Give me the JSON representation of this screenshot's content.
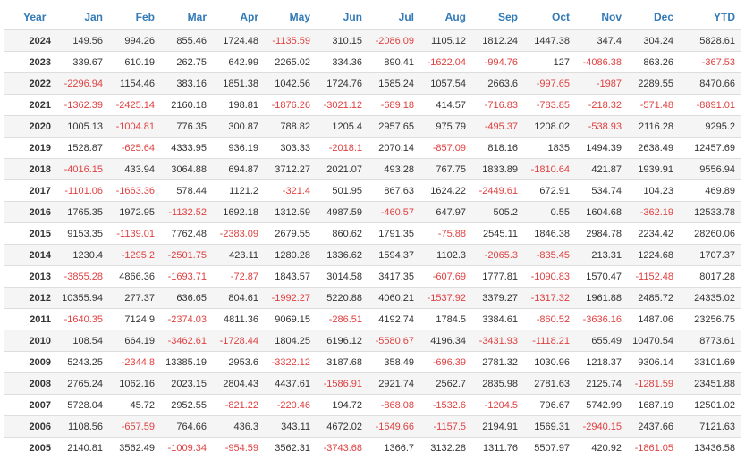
{
  "table": {
    "columns": [
      "Year",
      "Jan",
      "Feb",
      "Mar",
      "Apr",
      "May",
      "Jun",
      "Jul",
      "Aug",
      "Sep",
      "Oct",
      "Nov",
      "Dec",
      "YTD"
    ],
    "colors": {
      "header": "#337ab7",
      "negative": "#e04040",
      "text": "#333333",
      "stripe": "#f5f5f5"
    },
    "rows": [
      [
        "2024",
        "149.56",
        "994.26",
        "855.46",
        "1724.48",
        "-1135.59",
        "310.15",
        "-2086.09",
        "1105.12",
        "1812.24",
        "1447.38",
        "347.4",
        "304.24",
        "5828.61"
      ],
      [
        "2023",
        "339.67",
        "610.19",
        "262.75",
        "642.99",
        "2265.02",
        "334.36",
        "890.41",
        "-1622.04",
        "-994.76",
        "127",
        "-4086.38",
        "863.26",
        "-367.53"
      ],
      [
        "2022",
        "-2296.94",
        "1154.46",
        "383.16",
        "1851.38",
        "1042.56",
        "1724.76",
        "1585.24",
        "1057.54",
        "2663.6",
        "-997.65",
        "-1987",
        "2289.55",
        "8470.66"
      ],
      [
        "2021",
        "-1362.39",
        "-2425.14",
        "2160.18",
        "198.81",
        "-1876.26",
        "-3021.12",
        "-689.18",
        "414.57",
        "-716.83",
        "-783.85",
        "-218.32",
        "-571.48",
        "-8891.01"
      ],
      [
        "2020",
        "1005.13",
        "-1004.81",
        "776.35",
        "300.87",
        "788.82",
        "1205.4",
        "2957.65",
        "975.79",
        "-495.37",
        "1208.02",
        "-538.93",
        "2116.28",
        "9295.2"
      ],
      [
        "2019",
        "1528.87",
        "-625.64",
        "4333.95",
        "936.19",
        "303.33",
        "-2018.1",
        "2070.14",
        "-857.09",
        "818.16",
        "1835",
        "1494.39",
        "2638.49",
        "12457.69"
      ],
      [
        "2018",
        "-4016.15",
        "433.94",
        "3064.88",
        "694.87",
        "3712.27",
        "2021.07",
        "493.28",
        "767.75",
        "1833.89",
        "-1810.64",
        "421.87",
        "1939.91",
        "9556.94"
      ],
      [
        "2017",
        "-1101.06",
        "-1663.36",
        "578.44",
        "1121.2",
        "-321.4",
        "501.95",
        "867.63",
        "1624.22",
        "-2449.61",
        "672.91",
        "534.74",
        "104.23",
        "469.89"
      ],
      [
        "2016",
        "1765.35",
        "1972.95",
        "-1132.52",
        "1692.18",
        "1312.59",
        "4987.59",
        "-460.57",
        "647.97",
        "505.2",
        "0.55",
        "1604.68",
        "-362.19",
        "12533.78"
      ],
      [
        "2015",
        "9153.35",
        "-1139.01",
        "7762.48",
        "-2383.09",
        "2679.55",
        "860.62",
        "1791.35",
        "-75.88",
        "2545.11",
        "1846.38",
        "2984.78",
        "2234.42",
        "28260.06"
      ],
      [
        "2014",
        "1230.4",
        "-1295.2",
        "-2501.75",
        "423.11",
        "1280.28",
        "1336.62",
        "1594.37",
        "1102.3",
        "-2065.3",
        "-835.45",
        "213.31",
        "1224.68",
        "1707.37"
      ],
      [
        "2013",
        "-3855.28",
        "4866.36",
        "-1693.71",
        "-72.87",
        "1843.57",
        "3014.58",
        "3417.35",
        "-607.69",
        "1777.81",
        "-1090.83",
        "1570.47",
        "-1152.48",
        "8017.28"
      ],
      [
        "2012",
        "10355.94",
        "277.37",
        "636.65",
        "804.61",
        "-1992.27",
        "5220.88",
        "4060.21",
        "-1537.92",
        "3379.27",
        "-1317.32",
        "1961.88",
        "2485.72",
        "24335.02"
      ],
      [
        "2011",
        "-1640.35",
        "7124.9",
        "-2374.03",
        "4811.36",
        "9069.15",
        "-286.51",
        "4192.74",
        "1784.5",
        "3384.61",
        "-860.52",
        "-3636.16",
        "1487.06",
        "23256.75"
      ],
      [
        "2010",
        "108.54",
        "664.19",
        "-3462.61",
        "-1728.44",
        "1804.25",
        "6196.12",
        "-5580.67",
        "4196.34",
        "-3431.93",
        "-1118.21",
        "655.49",
        "10470.54",
        "8773.61"
      ],
      [
        "2009",
        "5243.25",
        "-2344.8",
        "13385.19",
        "2953.6",
        "-3322.12",
        "3187.68",
        "358.49",
        "-696.39",
        "2781.32",
        "1030.96",
        "1218.37",
        "9306.14",
        "33101.69"
      ],
      [
        "2008",
        "2765.24",
        "1062.16",
        "2023.15",
        "2804.43",
        "4437.61",
        "-1586.91",
        "2921.74",
        "2562.7",
        "2835.98",
        "2781.63",
        "2125.74",
        "-1281.59",
        "23451.88"
      ],
      [
        "2007",
        "5728.04",
        "45.72",
        "2952.55",
        "-821.22",
        "-220.46",
        "194.72",
        "-868.08",
        "-1532.6",
        "-1204.5",
        "796.67",
        "5742.99",
        "1687.19",
        "12501.02"
      ],
      [
        "2006",
        "1108.56",
        "-657.59",
        "764.66",
        "436.3",
        "343.11",
        "4672.02",
        "-1649.66",
        "-1157.5",
        "2194.91",
        "1569.31",
        "-2940.15",
        "2437.66",
        "7121.63"
      ],
      [
        "2005",
        "2140.81",
        "3562.49",
        "-1009.34",
        "-954.59",
        "3562.31",
        "-3743.68",
        "1366.7",
        "3132.28",
        "1311.76",
        "5507.97",
        "420.92",
        "-1861.05",
        "13436.58"
      ]
    ]
  }
}
